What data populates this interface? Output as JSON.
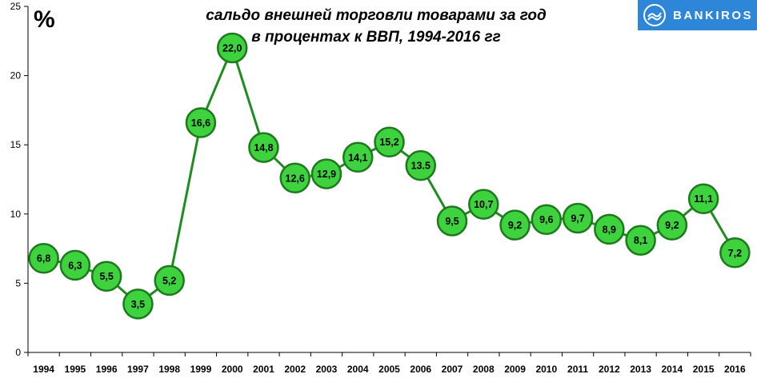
{
  "unit_label": "%",
  "title_line1": "сальдо внешней  торговли товарами за год",
  "title_line2": "в процентах к ВВП, 1994-2016 гг",
  "brand": {
    "name": "BANKIROS",
    "color": "#2e86d8"
  },
  "chart_data": {
    "type": "line",
    "title": "сальдо внешней  торговли товарами за год в процентах к ВВП, 1994-2016 гг",
    "x": [
      1994,
      1995,
      1996,
      1997,
      1998,
      1999,
      2000,
      2001,
      2002,
      2003,
      2004,
      2005,
      2006,
      2007,
      2008,
      2009,
      2010,
      2011,
      2012,
      2013,
      2014,
      2015,
      2016
    ],
    "values": [
      6.8,
      6.3,
      5.5,
      3.5,
      5.2,
      16.6,
      22.0,
      14.8,
      12.6,
      12.9,
      14.1,
      15.2,
      13.5,
      9.5,
      10.7,
      9.2,
      9.6,
      9.7,
      8.9,
      8.1,
      9.2,
      11.1,
      7.2
    ],
    "data_labels": [
      "6,8",
      "6,3",
      "5,5",
      "3,5",
      "5,2",
      "16,6",
      "22,0",
      "14,8",
      "12,6",
      "12,9",
      "14,1",
      "15,2",
      "13.5",
      "9,5",
      "10,7",
      "9,2",
      "9,6",
      "9,7",
      "8,9",
      "8,1",
      "9,2",
      "11,1",
      "7,2"
    ],
    "yticks": [
      0,
      5,
      10,
      15,
      20,
      25
    ],
    "ylim": [
      0,
      25
    ],
    "ylabel": "%",
    "line_color": "#1e8c1e",
    "marker_fill": "#3ed33e",
    "marker_stroke": "#1c7a1c",
    "grid": false,
    "legend": false
  }
}
